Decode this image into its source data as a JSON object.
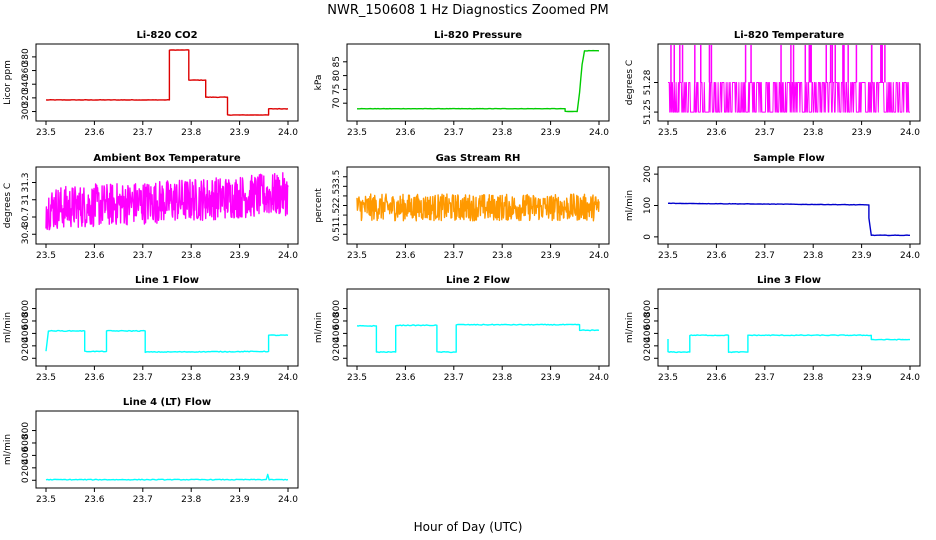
{
  "figure": {
    "title": "NWR_150608  1 Hz Diagnostics Zoomed PM",
    "xlabel": "Hour of Day (UTC)"
  },
  "chart_data": [
    {
      "type": "line",
      "title": "Li-820 CO2",
      "ylabel": "Licor ppm",
      "color": "#dd0000",
      "xlim": [
        23.5,
        24.0
      ],
      "ylim": [
        292,
        393
      ],
      "xticks": [
        "23.5",
        "23.6",
        "23.7",
        "23.8",
        "23.9",
        "24.0"
      ],
      "yticks": [
        300,
        320,
        340,
        360,
        380
      ],
      "series": [
        {
          "x": [
            23.5,
            23.755,
            23.755,
            23.795,
            23.795,
            23.83,
            23.83,
            23.875,
            23.875,
            23.96,
            23.96,
            24.0
          ],
          "y": [
            317,
            317,
            390,
            390,
            346,
            346,
            321,
            321,
            295,
            295,
            304,
            304
          ]
        }
      ]
    },
    {
      "type": "line",
      "title": "Li-820 Pressure",
      "ylabel": "kPa",
      "color": "#00cc00",
      "xlim": [
        23.5,
        24.0
      ],
      "ylim": [
        65,
        90
      ],
      "xticks": [
        "23.5",
        "23.6",
        "23.7",
        "23.8",
        "23.9",
        "24.0"
      ],
      "yticks": [
        70,
        75,
        80,
        85
      ],
      "series": [
        {
          "x": [
            23.5,
            23.93,
            23.93,
            23.955,
            23.96,
            23.965,
            23.97,
            24.0
          ],
          "y": [
            68,
            68,
            67,
            67,
            74,
            84,
            89,
            89
          ]
        }
      ]
    },
    {
      "type": "line",
      "title": "Li-820 Temperature",
      "ylabel": "degrees C",
      "color": "#ff00ff",
      "xlim": [
        23.5,
        24.0
      ],
      "ylim": [
        51.245,
        51.315
      ],
      "xticks": [
        "23.5",
        "23.6",
        "23.7",
        "23.8",
        "23.9",
        "24.0"
      ],
      "yticks": [
        51.25,
        51.28
      ],
      "series": [
        {
          "x": [
            23.5,
            24.0
          ],
          "y": [
            51.25,
            51.28
          ]
        }
      ]
    },
    {
      "type": "line",
      "title": "Ambient Box Temperature",
      "ylabel": "degrees C",
      "color": "#ff00ff",
      "xlim": [
        23.5,
        24.0
      ],
      "ylim": [
        30.3,
        31.5
      ],
      "xticks": [
        "23.5",
        "23.6",
        "23.7",
        "23.8",
        "23.9",
        "24.0"
      ],
      "yticks": [
        30.4,
        30.7,
        31.0,
        31.3
      ],
      "series": [
        {
          "x": [
            23.5,
            24.0
          ],
          "y": [
            30.85,
            31.1
          ]
        }
      ]
    },
    {
      "type": "line",
      "title": "Gas Stream RH",
      "ylabel": "percent",
      "color": "#ff9900",
      "xlim": [
        23.5,
        24.0
      ],
      "ylim": [
        0.2,
        3.8
      ],
      "xticks": [
        "23.5",
        "23.6",
        "23.7",
        "23.8",
        "23.9",
        "24.0"
      ],
      "yticks": [
        0.5,
        1.0,
        1.5,
        2.0,
        2.5,
        3.0,
        3.5
      ],
      "series": [
        {
          "x": [
            23.5,
            24.0
          ],
          "y": [
            1.9,
            1.9
          ]
        }
      ]
    },
    {
      "type": "line",
      "title": "Sample Flow",
      "ylabel": "ml/min",
      "color": "#0000cc",
      "xlim": [
        23.5,
        24.0
      ],
      "ylim": [
        -10,
        210
      ],
      "xticks": [
        "23.5",
        "23.6",
        "23.7",
        "23.8",
        "23.9",
        "24.0"
      ],
      "yticks": [
        0,
        100,
        200
      ],
      "series": [
        {
          "x": [
            23.5,
            23.915,
            23.915,
            23.92,
            24.0
          ],
          "y": [
            107,
            102,
            60,
            5,
            5
          ]
        }
      ]
    },
    {
      "type": "line",
      "title": "Line 1 Flow",
      "ylabel": "ml/min",
      "color": "#00ffff",
      "xlim": [
        23.5,
        24.0
      ],
      "ylim": [
        -60,
        1050
      ],
      "xticks": [
        "23.5",
        "23.6",
        "23.7",
        "23.8",
        "23.9",
        "24.0"
      ],
      "yticks": [
        0,
        200,
        400,
        600,
        800
      ],
      "series": [
        {
          "x": [
            23.5,
            23.505,
            23.58,
            23.58,
            23.625,
            23.625,
            23.705,
            23.705,
            23.96,
            23.96,
            24.0
          ],
          "y": [
            120,
            440,
            440,
            110,
            110,
            440,
            440,
            100,
            110,
            370,
            370
          ]
        }
      ]
    },
    {
      "type": "line",
      "title": "Line 2 Flow",
      "ylabel": "ml/min",
      "color": "#00ffff",
      "xlim": [
        23.5,
        24.0
      ],
      "ylim": [
        -60,
        1050
      ],
      "xticks": [
        "23.5",
        "23.6",
        "23.7",
        "23.8",
        "23.9",
        "24.0"
      ],
      "yticks": [
        0,
        200,
        400,
        600,
        800
      ],
      "series": [
        {
          "x": [
            23.5,
            23.54,
            23.54,
            23.58,
            23.58,
            23.665,
            23.665,
            23.705,
            23.705,
            23.96,
            23.96,
            24.0
          ],
          "y": [
            520,
            520,
            100,
            100,
            530,
            530,
            100,
            100,
            540,
            540,
            450,
            450
          ]
        }
      ]
    },
    {
      "type": "line",
      "title": "Line 3 Flow",
      "ylabel": "ml/min",
      "color": "#00ffff",
      "xlim": [
        23.5,
        24.0
      ],
      "ylim": [
        -60,
        1050
      ],
      "xticks": [
        "23.5",
        "23.6",
        "23.7",
        "23.8",
        "23.9",
        "24.0"
      ],
      "yticks": [
        0,
        200,
        400,
        600,
        800
      ],
      "series": [
        {
          "x": [
            23.5,
            23.5,
            23.545,
            23.545,
            23.625,
            23.625,
            23.665,
            23.665,
            23.92,
            23.92,
            24.0
          ],
          "y": [
            310,
            100,
            100,
            370,
            370,
            100,
            100,
            370,
            370,
            300,
            300
          ]
        }
      ]
    },
    {
      "type": "line",
      "title": "Line 4 (LT) Flow",
      "ylabel": "ml/min",
      "color": "#00ffff",
      "xlim": [
        23.5,
        24.0
      ],
      "ylim": [
        -60,
        1050
      ],
      "xticks": [
        "23.5",
        "23.6",
        "23.7",
        "23.8",
        "23.9",
        "24.0"
      ],
      "yticks": [
        0,
        200,
        400,
        600,
        800
      ],
      "series": [
        {
          "x": [
            23.5,
            23.955,
            23.958,
            23.961,
            24.0
          ],
          "y": [
            10,
            10,
            90,
            10,
            10
          ]
        }
      ]
    }
  ]
}
